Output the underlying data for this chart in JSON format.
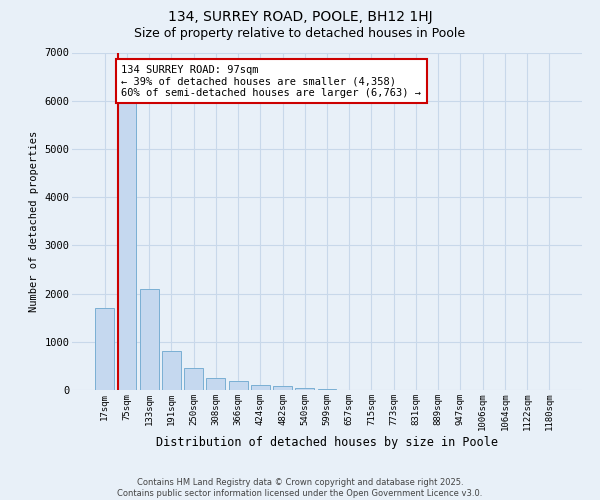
{
  "title": "134, SURREY ROAD, POOLE, BH12 1HJ",
  "subtitle": "Size of property relative to detached houses in Poole",
  "xlabel": "Distribution of detached houses by size in Poole",
  "ylabel": "Number of detached properties",
  "footer_line1": "Contains HM Land Registry data © Crown copyright and database right 2025.",
  "footer_line2": "Contains public sector information licensed under the Open Government Licence v3.0.",
  "bar_labels": [
    "17sqm",
    "75sqm",
    "133sqm",
    "191sqm",
    "250sqm",
    "308sqm",
    "366sqm",
    "424sqm",
    "482sqm",
    "540sqm",
    "599sqm",
    "657sqm",
    "715sqm",
    "773sqm",
    "831sqm",
    "889sqm",
    "947sqm",
    "1006sqm",
    "1064sqm",
    "1122sqm",
    "1180sqm"
  ],
  "bar_values": [
    1700,
    6000,
    2100,
    800,
    450,
    250,
    190,
    100,
    75,
    45,
    25,
    8,
    3,
    1,
    0,
    0,
    0,
    0,
    0,
    0,
    0
  ],
  "bar_color": "#c5d8ef",
  "bar_edge_color": "#7aafd4",
  "grid_color": "#c8d8ea",
  "background_color": "#e8f0f8",
  "vline_color": "#cc0000",
  "vline_pos": 0.6,
  "annotation_title": "134 SURREY ROAD: 97sqm",
  "annotation_line1": "← 39% of detached houses are smaller (4,358)",
  "annotation_line2": "60% of semi-detached houses are larger (6,763) →",
  "annotation_box_edgecolor": "#cc0000",
  "ylim": [
    0,
    7000
  ],
  "yticks": [
    0,
    1000,
    2000,
    3000,
    4000,
    5000,
    6000,
    7000
  ],
  "title_fontsize": 10,
  "subtitle_fontsize": 9
}
